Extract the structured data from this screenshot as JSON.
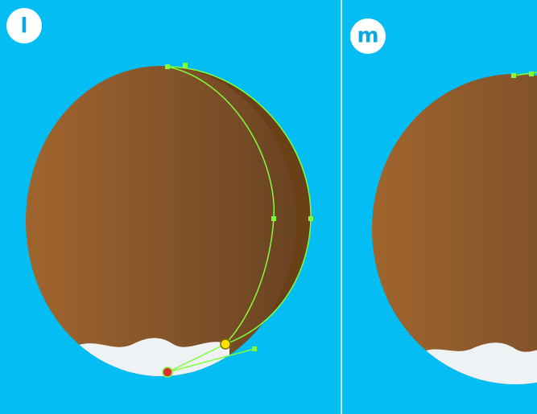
{
  "panels": [
    {
      "label": "l"
    },
    {
      "label": "m"
    }
  ]
}
